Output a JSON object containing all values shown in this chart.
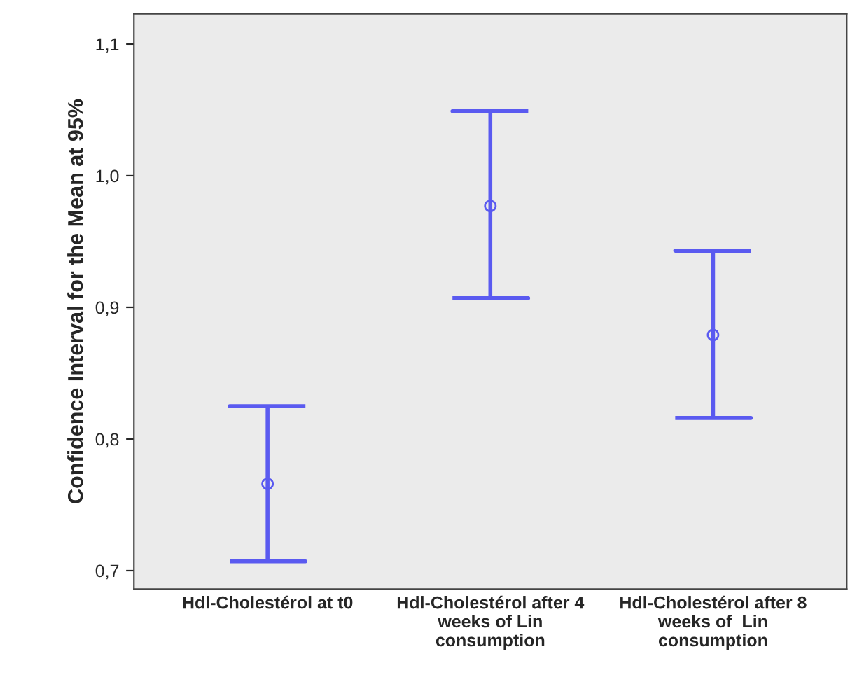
{
  "chart_data": {
    "type": "scatter",
    "ylabel": "Confidence Interval for the Mean at 95%",
    "categories": [
      "Hdl-Cholestérol at t0",
      "Hdl-Cholestérol after 4\nweeks of Lin\nconsumption",
      "Hdl-Cholestérol after 8\nweeks of  Lin\nconsumption"
    ],
    "series": [
      {
        "color": "#5a5af0",
        "values": [
          0.766,
          0.977,
          0.879
        ],
        "errors": [
          [
            0.707,
            0.825
          ],
          [
            0.907,
            1.049
          ],
          [
            0.816,
            0.943
          ]
        ]
      }
    ],
    "ylim": [
      0.686,
      1.123
    ],
    "yticks": [
      {
        "value": 0.7,
        "label": "0,7"
      },
      {
        "value": 0.8,
        "label": "0,8"
      },
      {
        "value": 0.9,
        "label": "0,9"
      },
      {
        "value": 1.0,
        "label": "1,0"
      },
      {
        "value": 1.1,
        "label": "1,1"
      }
    ],
    "marker": "circle",
    "grid": false,
    "legend": false
  }
}
